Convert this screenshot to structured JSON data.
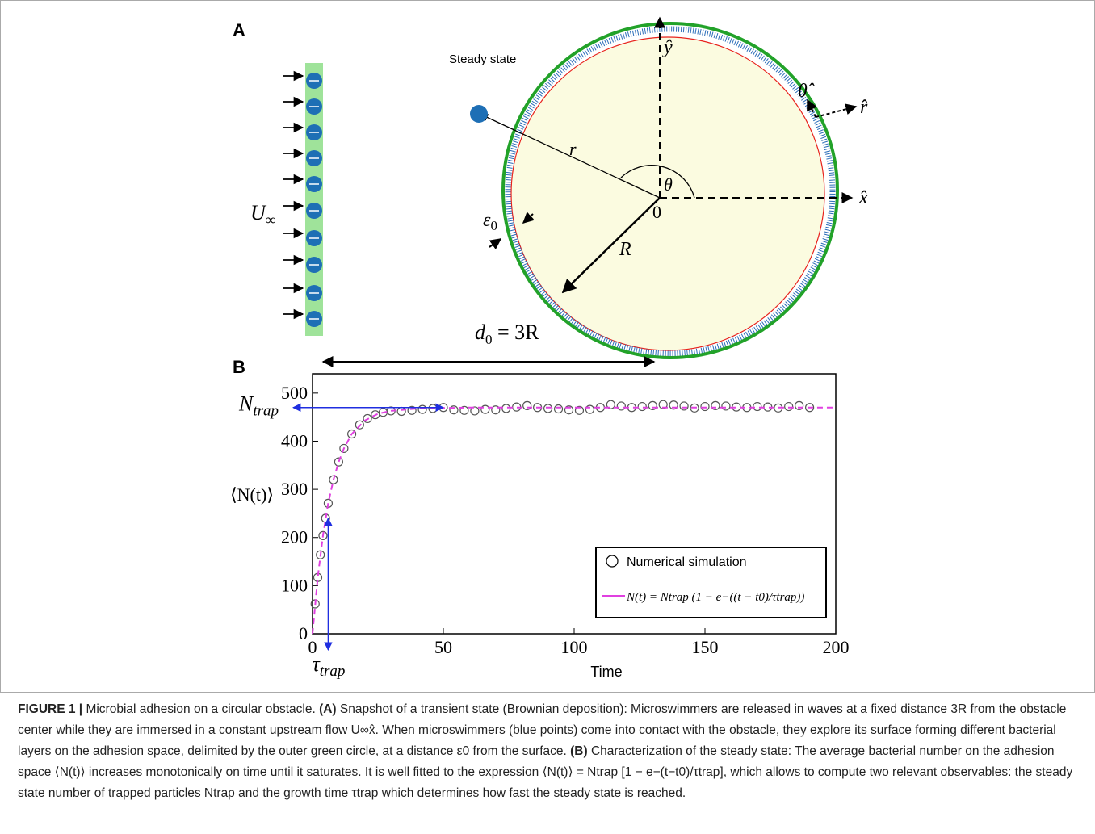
{
  "panel_a": {
    "label": "A",
    "steady_state": "Steady state",
    "u": "U",
    "u_sub": "∞",
    "r_vec": "r⃗",
    "theta": "θ",
    "origin": "0",
    "x_hat": "x̂",
    "y_hat": "ŷ",
    "theta_hat": "θ̂",
    "r_hat": "r̂",
    "epsilon": "ε",
    "epsilon_sub": "0",
    "radius": "R",
    "distance": "d",
    "distance_sub": "0",
    "distance_eq": " = 3R"
  },
  "panel_b_label": "B",
  "chart_data": {
    "type": "line",
    "x_label": "Time",
    "y_label": "⟨N(t)⟩",
    "xlim": [
      0,
      200
    ],
    "xticks": [
      0,
      50,
      100,
      150,
      200
    ],
    "ylim": [
      0,
      540
    ],
    "yticks": [
      0,
      100,
      200,
      300,
      400,
      500
    ],
    "series": [
      {
        "name": "Numerical simulation",
        "style": "markers",
        "color": "#555555",
        "x": [
          1,
          2,
          3,
          4,
          5,
          6,
          8,
          10,
          12,
          15,
          18,
          21,
          24,
          27,
          30,
          34,
          38,
          42,
          46,
          50,
          54,
          58,
          62,
          66,
          70,
          74,
          78,
          82,
          86,
          90,
          94,
          98,
          102,
          106,
          110,
          114,
          118,
          122,
          126,
          130,
          134,
          138,
          142,
          146,
          150,
          154,
          158,
          162,
          166,
          170,
          174,
          178,
          182,
          186,
          190
        ],
        "values": [
          62,
          117,
          164,
          204,
          240,
          271,
          320,
          357,
          385,
          415,
          434,
          447,
          455,
          460,
          463,
          462,
          464,
          466,
          468,
          470,
          465,
          464,
          463,
          466,
          465,
          468,
          471,
          474,
          470,
          468,
          467,
          465,
          464,
          466,
          470,
          476,
          473,
          470,
          472,
          474,
          476,
          475,
          473,
          469,
          472,
          474,
          473,
          471,
          470,
          472,
          471,
          469,
          472,
          474,
          470
        ]
      },
      {
        "name": "N(t) = Ntrap (1 − e−((t − t0)/τtrap))",
        "style": "dashed",
        "color": "#e040e0",
        "x": [
          0,
          2,
          4,
          6,
          8,
          10,
          12,
          15,
          20,
          25,
          30,
          40,
          60,
          100,
          200
        ],
        "values": [
          0,
          117,
          204,
          271,
          320,
          357,
          385,
          415,
          443,
          457,
          463,
          468,
          470,
          470,
          470
        ]
      }
    ],
    "annotations": [
      {
        "text": "N",
        "subscript": "trap",
        "axis": "y",
        "value": 470,
        "extent": 50,
        "color": "#1f2ee0"
      },
      {
        "text": "τ",
        "subscript": "trap",
        "axis": "x",
        "value": 6,
        "extent": 240,
        "color": "#1f2ee0"
      }
    ]
  },
  "caption": [
    {
      "text": "FIGURE 1 | ",
      "bold": true
    },
    {
      "text": "Microbial adhesion on a circular obstacle. "
    },
    {
      "text": "(A)",
      "bold": true
    },
    {
      "text": " Snapshot of a transient state (Brownian deposition): Microswimmers are released in waves at a fixed distance 3R from the obstacle center while they are immersed in a constant upstream flow U∞x̂. When microswimmers (blue points) come into contact with the obstacle, they explore its surface forming different bacterial layers on the adhesion space, delimited by the outer green circle, at a distance ε0 from the surface. "
    },
    {
      "text": "(B)",
      "bold": true
    },
    {
      "text": " Characterization of the steady state: The average bacterial number on the adhesion space ⟨N(t)⟩ increases monotonically on time until it saturates. It is well fitted to the expression ⟨N(t)⟩ = Ntrap [1 − e−(t−t0)/τtrap], which allows to compute two relevant observables: the steady state number of trapped particles Ntrap and the growth time τtrap which determines how fast the steady state is reached."
    }
  ]
}
